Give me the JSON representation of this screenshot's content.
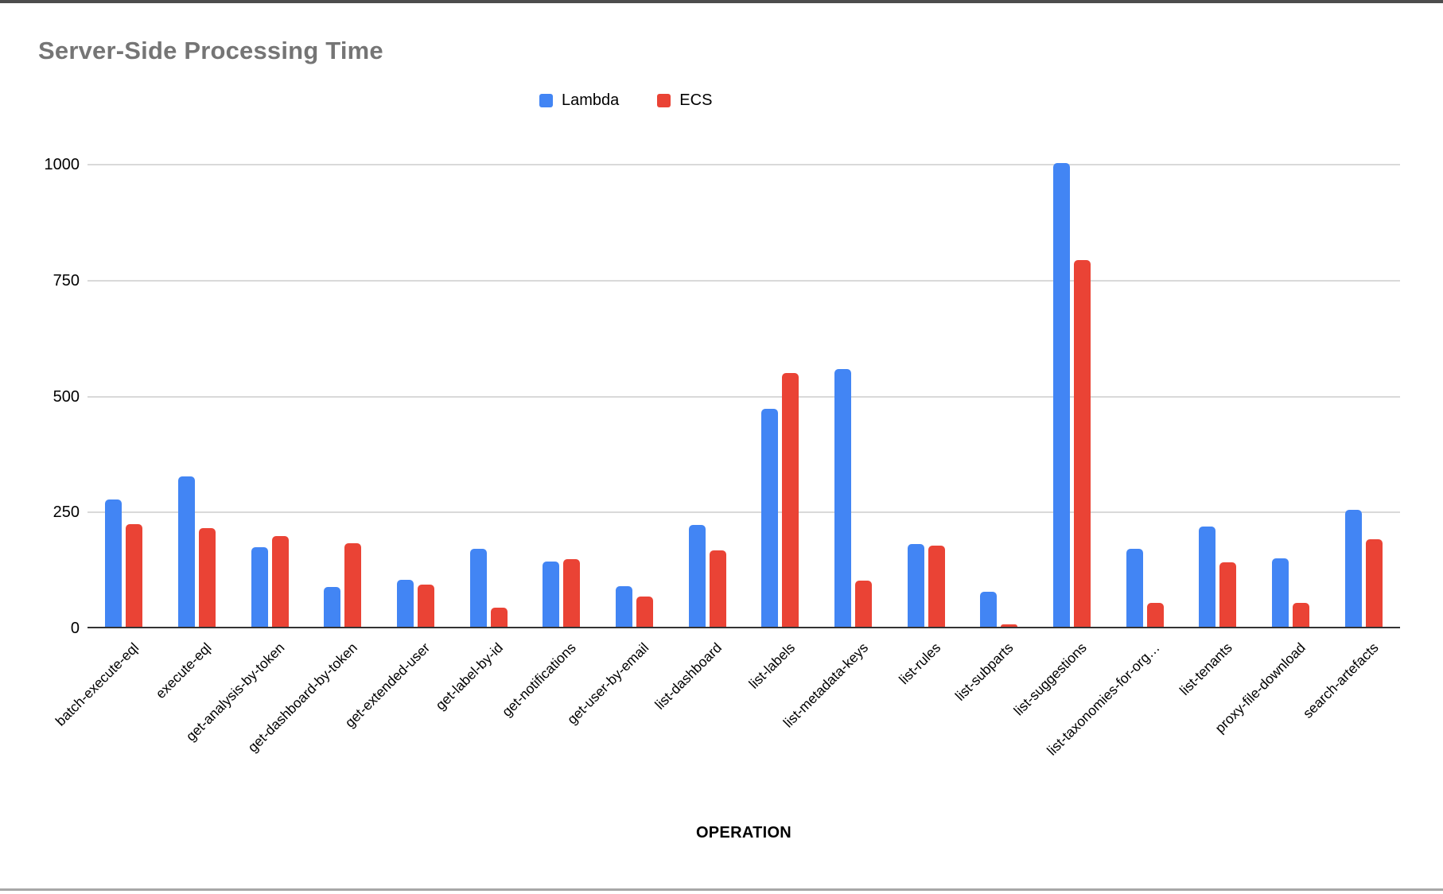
{
  "chart": {
    "title": "Server-Side Processing Time",
    "x_axis_title": "OPERATION"
  },
  "chart_data": {
    "type": "bar",
    "title": "Server-Side Processing Time",
    "xlabel": "OPERATION",
    "ylabel": "",
    "ylim": [
      0,
      1000
    ],
    "yticks": [
      0,
      250,
      500,
      750,
      1000
    ],
    "grid": true,
    "legend_position": "top-center",
    "categories": [
      "batch-execute-eql",
      "execute-eql",
      "get-analysis-by-token",
      "get-dashboard-by-token",
      "get-extended-user",
      "get-label-by-id",
      "get-notifications",
      "get-user-by-email",
      "list-dashboard",
      "list-labels",
      "list-metadata-keys",
      "list-rules",
      "list-subparts",
      "list-suggestions",
      "list-taxonomies-for-org…",
      "list-tenants",
      "proxy-file-download",
      "search-artefacts"
    ],
    "series": [
      {
        "name": "Lambda",
        "color": "#4285F4",
        "values": [
          275,
          324,
          172,
          86,
          102,
          168,
          140,
          87,
          220,
          470,
          556,
          179,
          75,
          1000,
          168,
          217,
          147,
          253
        ]
      },
      {
        "name": "ECS",
        "color": "#EA4335",
        "values": [
          222,
          212,
          196,
          180,
          91,
          41,
          146,
          65,
          164,
          548,
          100,
          175,
          5,
          790,
          51,
          139,
          51,
          188
        ]
      }
    ],
    "colors": {
      "grid": "#d9d9d9",
      "axis": "#333333",
      "title": "#757575"
    }
  }
}
